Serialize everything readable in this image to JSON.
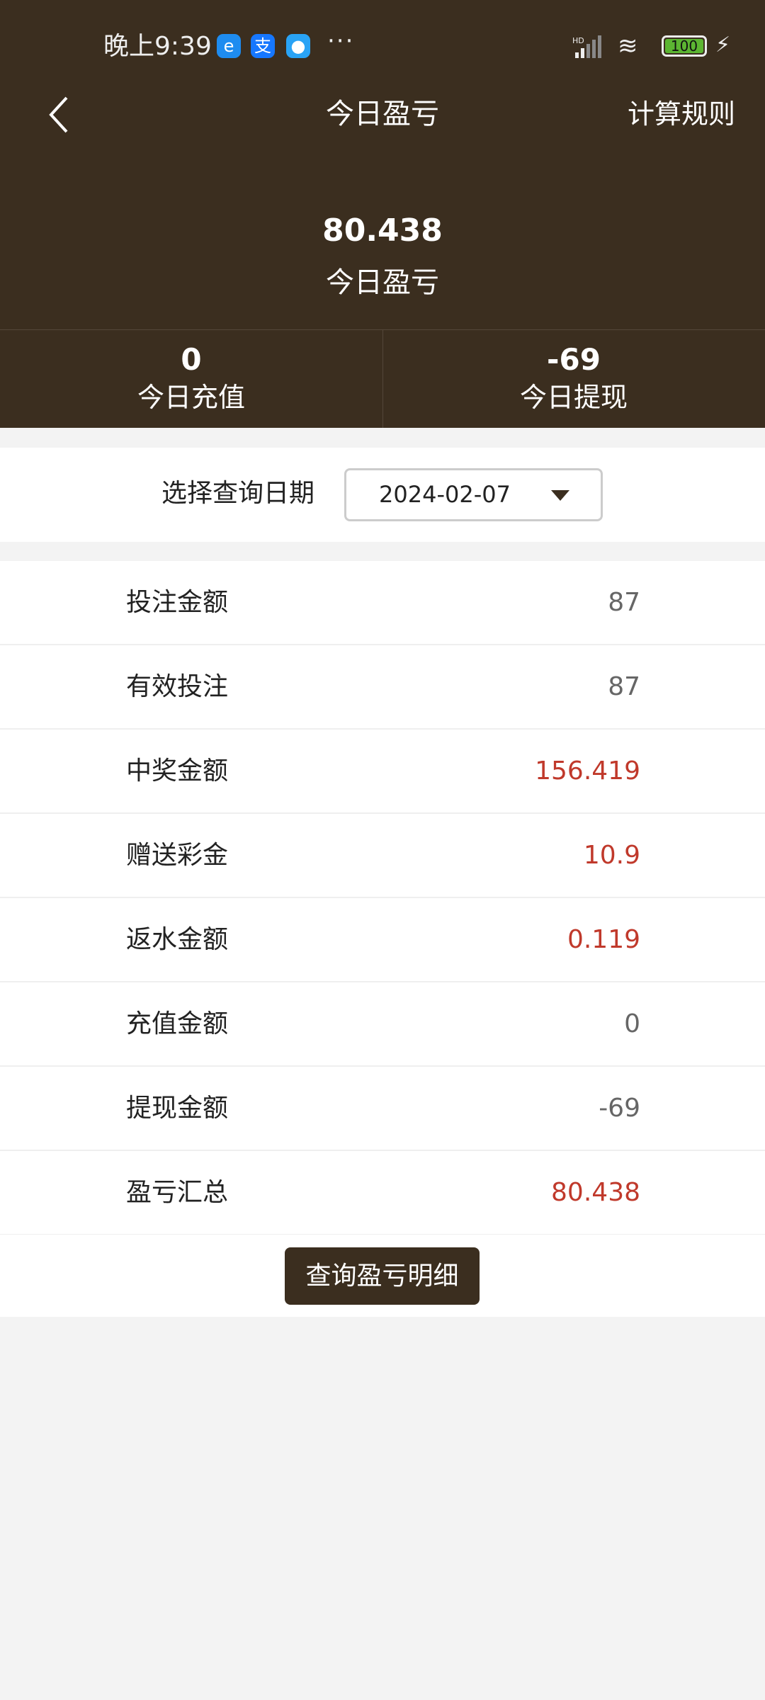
{
  "status_bar": {
    "time": "晚上9:39",
    "icons": [
      "edge-browser-icon",
      "alipay-icon",
      "chat-app-icon"
    ],
    "more": "···",
    "network": "HD",
    "battery": "100"
  },
  "nav": {
    "title": "今日盈亏",
    "rules_label": "计算规则"
  },
  "summary": {
    "value": "80.438",
    "label": "今日盈亏"
  },
  "stats": [
    {
      "value": "0",
      "label": "今日充值"
    },
    {
      "value": "-69",
      "label": "今日提现"
    }
  ],
  "date_filter": {
    "label": "选择查询日期",
    "value": "2024-02-07"
  },
  "rows": [
    {
      "label": "投注金额",
      "value": "87",
      "highlight": false
    },
    {
      "label": "有效投注",
      "value": "87",
      "highlight": false
    },
    {
      "label": "中奖金额",
      "value": "156.419",
      "highlight": true
    },
    {
      "label": "赠送彩金",
      "value": "10.9",
      "highlight": true
    },
    {
      "label": "返水金额",
      "value": "0.119",
      "highlight": true
    },
    {
      "label": "充值金额",
      "value": "0",
      "highlight": false
    },
    {
      "label": "提现金额",
      "value": "-69",
      "highlight": false
    },
    {
      "label": "盈亏汇总",
      "value": "80.438",
      "highlight": true
    }
  ],
  "detail_button": "查询盈亏明细",
  "colors": {
    "header": "#3b2e1f",
    "highlight": "#c0392b"
  }
}
